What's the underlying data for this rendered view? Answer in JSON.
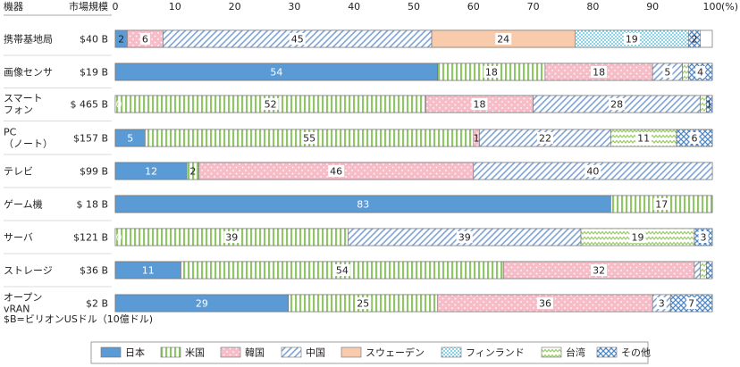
{
  "header": {
    "col_device": "機器",
    "col_market": "市場規模",
    "unit": "(%)"
  },
  "note": "$B=ビリオンUSドル（10億ドル)",
  "chart_data": {
    "type": "bar",
    "orientation": "horizontal",
    "stacked": true,
    "xlim": [
      0,
      100
    ],
    "x_ticks": [
      "0",
      "10",
      "20",
      "30",
      "40",
      "50",
      "60",
      "70",
      "80",
      "90",
      "100"
    ],
    "grid": false,
    "legend_position": "bottom",
    "categories": [
      {
        "label": [
          "携帯基地局"
        ],
        "market": "$40 B"
      },
      {
        "label": [
          "画像センサ"
        ],
        "market": "$19 B"
      },
      {
        "label": [
          "スマート",
          "フォン"
        ],
        "market": "$ 465 B"
      },
      {
        "label": [
          "PC",
          "（ノート）"
        ],
        "market": "$157 B"
      },
      {
        "label": [
          "テレビ"
        ],
        "market": "$99 B"
      },
      {
        "label": [
          "ゲーム機"
        ],
        "market": "$ 18 B"
      },
      {
        "label": [
          "サーバ"
        ],
        "market": "$121 B"
      },
      {
        "label": [
          "ストレージ"
        ],
        "market": "$36 B"
      },
      {
        "label": [
          "オープン",
          "vRAN"
        ],
        "market": "$2 B"
      }
    ],
    "series": [
      {
        "name": "日本",
        "color": "#5b9bd5",
        "pattern": "solid",
        "values": [
          2,
          54,
          0,
          5,
          12,
          83,
          0,
          11,
          29
        ],
        "labels": [
          "2",
          "54",
          "0",
          "5",
          "12",
          "83",
          "0",
          "11",
          "29"
        ]
      },
      {
        "name": "米国",
        "color": "#a9d18e",
        "pattern": "vlines",
        "values": [
          0,
          18,
          52,
          55,
          2,
          17,
          39,
          54,
          25
        ],
        "labels": [
          "",
          "18",
          "52",
          "55",
          "2",
          "17",
          "39",
          "54",
          "25"
        ]
      },
      {
        "name": "韓国",
        "color": "#f4b6c2",
        "pattern": "dots",
        "values": [
          6,
          18,
          18,
          1,
          46,
          0,
          0,
          32,
          36
        ],
        "labels": [
          "6",
          "18",
          "18",
          "1",
          "46",
          "",
          "",
          "32",
          "36"
        ]
      },
      {
        "name": "中国",
        "color": "#b4c7e7",
        "pattern": "diag",
        "values": [
          45,
          5,
          28,
          22,
          40,
          0,
          39,
          1,
          3
        ],
        "labels": [
          "45",
          "5",
          "28",
          "22",
          "40",
          "",
          "39",
          "",
          "3"
        ]
      },
      {
        "name": "スウェーデン",
        "color": "#f8cbad",
        "pattern": "solid",
        "values": [
          24,
          0,
          0,
          0,
          0,
          0,
          0,
          0,
          0
        ],
        "labels": [
          "24",
          "",
          "",
          "",
          "",
          "",
          "",
          "",
          ""
        ]
      },
      {
        "name": "フィンランド",
        "color": "#c6e9f5",
        "pattern": "grid",
        "values": [
          19,
          0,
          0,
          0,
          0,
          0,
          0,
          0,
          0
        ],
        "labels": [
          "19",
          "",
          "",
          "",
          "",
          "",
          "",
          "",
          ""
        ]
      },
      {
        "name": "台湾",
        "color": "#c5e0b4",
        "pattern": "zigzag",
        "values": [
          0,
          1,
          1,
          11,
          0,
          0,
          19,
          1,
          0
        ],
        "labels": [
          "",
          "",
          "",
          "11",
          "",
          "",
          "19",
          "",
          ""
        ]
      },
      {
        "name": "その他",
        "color": "#9dc3e6",
        "pattern": "check",
        "values": [
          2,
          4,
          1,
          6,
          0,
          0,
          3,
          1,
          7
        ],
        "labels": [
          "2",
          "4",
          "1",
          "6",
          "",
          "",
          "3",
          "",
          "7"
        ]
      }
    ]
  }
}
